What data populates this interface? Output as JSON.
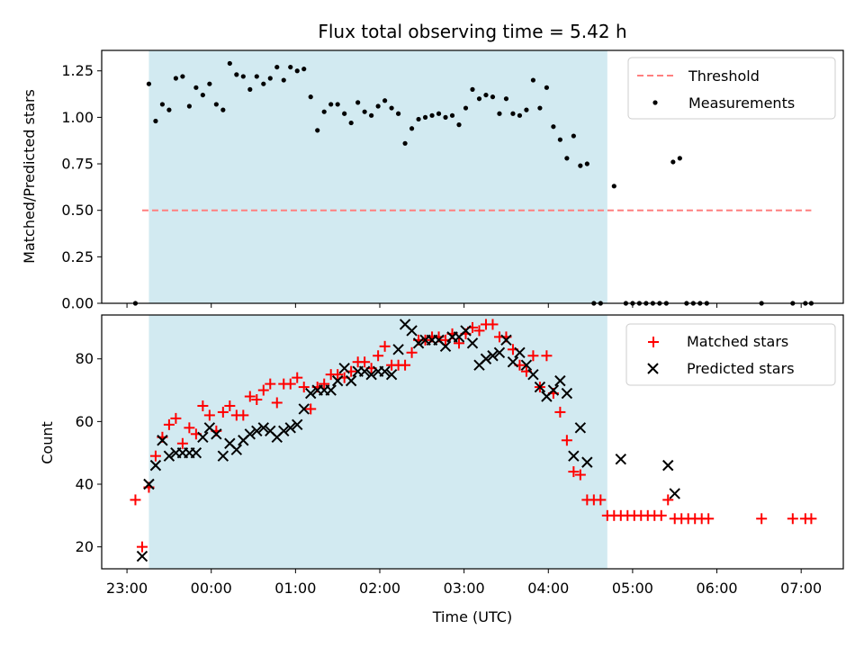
{
  "title": "Flux total observing time = 5.42 h",
  "colors": {
    "shade": "#add8e6",
    "threshold": "#ff7f7f",
    "measurement": "#000000",
    "matched": "#ff0000",
    "predicted": "#000000"
  },
  "chart_data": [
    {
      "type": "scatter",
      "ylabel": "Matched/Predicted stars",
      "xlabel": "",
      "xlim": [
        -0.3,
        8.5
      ],
      "ylim": [
        0,
        1.36
      ],
      "y_ticks": [
        "0.00",
        "0.25",
        "0.50",
        "0.75",
        "1.00",
        "1.25"
      ],
      "y_tick_values": [
        0,
        0.25,
        0.5,
        0.75,
        1.0,
        1.25
      ],
      "legend": "upper right",
      "shaded_span": [
        0.26,
        5.7
      ],
      "threshold": {
        "name": "Threshold",
        "y": 0.5,
        "x_range": [
          0.18,
          8.12
        ],
        "style": "dashed"
      },
      "series": [
        {
          "name": "Measurements",
          "points": [
            [
              0.1,
              0.0
            ],
            [
              0.26,
              1.18
            ],
            [
              0.34,
              0.98
            ],
            [
              0.42,
              1.07
            ],
            [
              0.5,
              1.04
            ],
            [
              0.58,
              1.21
            ],
            [
              0.66,
              1.22
            ],
            [
              0.74,
              1.06
            ],
            [
              0.82,
              1.16
            ],
            [
              0.9,
              1.12
            ],
            [
              0.98,
              1.18
            ],
            [
              1.06,
              1.07
            ],
            [
              1.14,
              1.04
            ],
            [
              1.22,
              1.29
            ],
            [
              1.3,
              1.23
            ],
            [
              1.38,
              1.22
            ],
            [
              1.46,
              1.15
            ],
            [
              1.54,
              1.22
            ],
            [
              1.62,
              1.18
            ],
            [
              1.7,
              1.21
            ],
            [
              1.78,
              1.27
            ],
            [
              1.86,
              1.2
            ],
            [
              1.94,
              1.27
            ],
            [
              2.02,
              1.25
            ],
            [
              2.1,
              1.26
            ],
            [
              2.18,
              1.11
            ],
            [
              2.26,
              0.93
            ],
            [
              2.34,
              1.03
            ],
            [
              2.42,
              1.07
            ],
            [
              2.5,
              1.07
            ],
            [
              2.58,
              1.02
            ],
            [
              2.66,
              0.97
            ],
            [
              2.74,
              1.08
            ],
            [
              2.82,
              1.03
            ],
            [
              2.9,
              1.01
            ],
            [
              2.98,
              1.06
            ],
            [
              3.06,
              1.09
            ],
            [
              3.14,
              1.05
            ],
            [
              3.22,
              1.02
            ],
            [
              3.3,
              0.86
            ],
            [
              3.38,
              0.94
            ],
            [
              3.46,
              0.99
            ],
            [
              3.54,
              1.0
            ],
            [
              3.62,
              1.01
            ],
            [
              3.7,
              1.02
            ],
            [
              3.78,
              1.0
            ],
            [
              3.86,
              1.01
            ],
            [
              3.94,
              0.96
            ],
            [
              4.02,
              1.05
            ],
            [
              4.1,
              1.15
            ],
            [
              4.18,
              1.1
            ],
            [
              4.26,
              1.12
            ],
            [
              4.34,
              1.11
            ],
            [
              4.42,
              1.02
            ],
            [
              4.5,
              1.1
            ],
            [
              4.58,
              1.02
            ],
            [
              4.66,
              1.01
            ],
            [
              4.74,
              1.04
            ],
            [
              4.82,
              1.2
            ],
            [
              4.9,
              1.05
            ],
            [
              4.98,
              1.16
            ],
            [
              5.06,
              0.95
            ],
            [
              5.14,
              0.88
            ],
            [
              5.22,
              0.78
            ],
            [
              5.3,
              0.9
            ],
            [
              5.38,
              0.74
            ],
            [
              5.46,
              0.75
            ],
            [
              5.54,
              0.0
            ],
            [
              5.62,
              0.0
            ],
            [
              5.78,
              0.63
            ],
            [
              5.92,
              0.0
            ],
            [
              6.0,
              0.0
            ],
            [
              6.08,
              0.0
            ],
            [
              6.16,
              0.0
            ],
            [
              6.24,
              0.0
            ],
            [
              6.32,
              0.0
            ],
            [
              6.4,
              0.0
            ],
            [
              6.48,
              0.76
            ],
            [
              6.56,
              0.78
            ],
            [
              6.64,
              0.0
            ],
            [
              6.72,
              0.0
            ],
            [
              6.8,
              0.0
            ],
            [
              6.88,
              0.0
            ],
            [
              7.53,
              0.0
            ],
            [
              7.9,
              0.0
            ],
            [
              8.05,
              0.0
            ],
            [
              8.12,
              0.0
            ]
          ]
        }
      ]
    },
    {
      "type": "scatter",
      "ylabel": "Count",
      "xlabel": "Time (UTC)",
      "xlim": [
        -0.3,
        8.5
      ],
      "ylim": [
        13,
        94
      ],
      "y_ticks": [
        "20",
        "40",
        "60",
        "80"
      ],
      "y_tick_values": [
        20,
        40,
        60,
        80
      ],
      "x_ticks": [
        "23:00",
        "00:00",
        "01:00",
        "02:00",
        "03:00",
        "04:00",
        "05:00",
        "06:00",
        "07:00"
      ],
      "x_tick_values": [
        0,
        1,
        2,
        3,
        4,
        5,
        6,
        7,
        8
      ],
      "legend": "upper right",
      "shaded_span": [
        0.26,
        5.7
      ],
      "series": [
        {
          "name": "Matched stars",
          "marker": "plus",
          "points": [
            [
              0.1,
              35
            ],
            [
              0.18,
              20
            ],
            [
              0.26,
              39
            ],
            [
              0.34,
              49
            ],
            [
              0.42,
              55
            ],
            [
              0.5,
              59
            ],
            [
              0.58,
              61
            ],
            [
              0.66,
              53
            ],
            [
              0.74,
              58
            ],
            [
              0.82,
              56
            ],
            [
              0.9,
              65
            ],
            [
              0.98,
              62
            ],
            [
              1.06,
              57
            ],
            [
              1.14,
              63
            ],
            [
              1.22,
              65
            ],
            [
              1.3,
              62
            ],
            [
              1.38,
              62
            ],
            [
              1.46,
              68
            ],
            [
              1.54,
              67
            ],
            [
              1.62,
              70
            ],
            [
              1.7,
              72
            ],
            [
              1.78,
              66
            ],
            [
              1.86,
              72
            ],
            [
              1.94,
              72
            ],
            [
              2.02,
              74
            ],
            [
              2.1,
              71
            ],
            [
              2.18,
              64
            ],
            [
              2.26,
              71
            ],
            [
              2.34,
              72
            ],
            [
              2.42,
              75
            ],
            [
              2.5,
              75
            ],
            [
              2.58,
              74
            ],
            [
              2.66,
              76
            ],
            [
              2.74,
              79
            ],
            [
              2.82,
              79
            ],
            [
              2.9,
              77
            ],
            [
              2.98,
              81
            ],
            [
              3.06,
              84
            ],
            [
              3.14,
              78
            ],
            [
              3.22,
              78
            ],
            [
              3.3,
              78
            ],
            [
              3.38,
              82
            ],
            [
              3.46,
              86
            ],
            [
              3.54,
              86
            ],
            [
              3.62,
              87
            ],
            [
              3.7,
              87
            ],
            [
              3.78,
              86
            ],
            [
              3.86,
              88
            ],
            [
              3.94,
              85
            ],
            [
              4.02,
              88
            ],
            [
              4.1,
              90
            ],
            [
              4.18,
              89
            ],
            [
              4.26,
              91
            ],
            [
              4.34,
              91
            ],
            [
              4.42,
              87
            ],
            [
              4.5,
              87
            ],
            [
              4.58,
              83
            ],
            [
              4.66,
              78
            ],
            [
              4.74,
              76
            ],
            [
              4.82,
              81
            ],
            [
              4.9,
              71
            ],
            [
              4.98,
              81
            ],
            [
              5.06,
              69
            ],
            [
              5.14,
              63
            ],
            [
              5.22,
              54
            ],
            [
              5.3,
              44
            ],
            [
              5.38,
              43
            ],
            [
              5.46,
              35
            ],
            [
              5.54,
              35
            ],
            [
              5.62,
              35
            ],
            [
              5.7,
              30
            ],
            [
              5.78,
              30
            ],
            [
              5.86,
              30
            ],
            [
              5.94,
              30
            ],
            [
              6.02,
              30
            ],
            [
              6.1,
              30
            ],
            [
              6.18,
              30
            ],
            [
              6.26,
              30
            ],
            [
              6.34,
              30
            ],
            [
              6.42,
              35
            ],
            [
              6.5,
              29
            ],
            [
              6.58,
              29
            ],
            [
              6.66,
              29
            ],
            [
              6.74,
              29
            ],
            [
              6.82,
              29
            ],
            [
              6.9,
              29
            ],
            [
              7.53,
              29
            ],
            [
              7.9,
              29
            ],
            [
              8.05,
              29
            ],
            [
              8.12,
              29
            ]
          ]
        },
        {
          "name": "Predicted stars",
          "marker": "x",
          "points": [
            [
              0.18,
              17
            ],
            [
              0.26,
              40
            ],
            [
              0.34,
              46
            ],
            [
              0.42,
              54
            ],
            [
              0.5,
              49
            ],
            [
              0.58,
              50
            ],
            [
              0.66,
              50
            ],
            [
              0.74,
              50
            ],
            [
              0.82,
              50
            ],
            [
              0.9,
              55
            ],
            [
              0.98,
              58
            ],
            [
              1.06,
              56
            ],
            [
              1.14,
              49
            ],
            [
              1.22,
              53
            ],
            [
              1.3,
              51
            ],
            [
              1.38,
              54
            ],
            [
              1.46,
              56
            ],
            [
              1.54,
              57
            ],
            [
              1.62,
              58
            ],
            [
              1.7,
              57
            ],
            [
              1.78,
              55
            ],
            [
              1.86,
              57
            ],
            [
              1.94,
              58
            ],
            [
              2.02,
              59
            ],
            [
              2.1,
              64
            ],
            [
              2.18,
              69
            ],
            [
              2.26,
              70
            ],
            [
              2.34,
              70
            ],
            [
              2.42,
              70
            ],
            [
              2.5,
              73
            ],
            [
              2.58,
              77
            ],
            [
              2.66,
              73
            ],
            [
              2.74,
              76
            ],
            [
              2.82,
              76
            ],
            [
              2.9,
              75
            ],
            [
              2.98,
              76
            ],
            [
              3.06,
              76
            ],
            [
              3.14,
              75
            ],
            [
              3.22,
              83
            ],
            [
              3.3,
              91
            ],
            [
              3.38,
              89
            ],
            [
              3.46,
              85
            ],
            [
              3.54,
              86
            ],
            [
              3.62,
              86
            ],
            [
              3.7,
              86
            ],
            [
              3.78,
              84
            ],
            [
              3.86,
              87
            ],
            [
              3.94,
              87
            ],
            [
              4.02,
              89
            ],
            [
              4.1,
              85
            ],
            [
              4.18,
              78
            ],
            [
              4.26,
              80
            ],
            [
              4.34,
              81
            ],
            [
              4.42,
              82
            ],
            [
              4.5,
              86
            ],
            [
              4.58,
              79
            ],
            [
              4.66,
              82
            ],
            [
              4.74,
              78
            ],
            [
              4.82,
              75
            ],
            [
              4.9,
              71
            ],
            [
              4.98,
              68
            ],
            [
              5.06,
              70
            ],
            [
              5.14,
              73
            ],
            [
              5.22,
              69
            ],
            [
              5.3,
              49
            ],
            [
              5.38,
              58
            ],
            [
              5.46,
              47
            ],
            [
              5.86,
              48
            ],
            [
              6.42,
              46
            ],
            [
              6.5,
              37
            ]
          ]
        }
      ]
    }
  ]
}
